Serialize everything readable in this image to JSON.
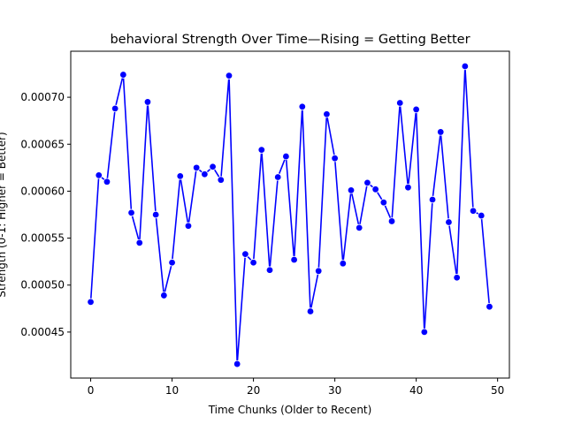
{
  "chart_data": {
    "type": "line",
    "title": "behavioral Strength Over Time—Rising = Getting Better",
    "xlabel": "Time Chunks (Older to Recent)",
    "ylabel": "Strength (0-1: Higher = Better)",
    "xlim": [
      -2.45,
      51.45
    ],
    "ylim": [
      0.000401,
      0.000749
    ],
    "xticks": [
      0,
      10,
      20,
      30,
      40,
      50
    ],
    "xtick_labels": [
      "0",
      "10",
      "20",
      "30",
      "40",
      "50"
    ],
    "yticks": [
      0.00045,
      0.0005,
      0.00055,
      0.0006,
      0.00065,
      0.0007
    ],
    "ytick_labels": [
      "0.00045",
      "0.00050",
      "0.00055",
      "0.00060",
      "0.00065",
      "0.00070"
    ],
    "grid": false,
    "legend": false,
    "series": [
      {
        "color": "#0000ff",
        "marker": "circle",
        "x": [
          0,
          1,
          2,
          3,
          4,
          5,
          6,
          7,
          8,
          9,
          10,
          11,
          12,
          13,
          14,
          15,
          16,
          17,
          18,
          19,
          20,
          21,
          22,
          23,
          24,
          25,
          26,
          27,
          28,
          29,
          30,
          31,
          32,
          33,
          34,
          35,
          36,
          37,
          38,
          39,
          40,
          41,
          42,
          43,
          44,
          45,
          46,
          47,
          48,
          49
        ],
        "values": [
          0.000482,
          0.000617,
          0.00061,
          0.000688,
          0.000724,
          0.000577,
          0.000545,
          0.000695,
          0.000575,
          0.000489,
          0.000524,
          0.000616,
          0.000563,
          0.000625,
          0.000618,
          0.000626,
          0.000612,
          0.000723,
          0.000416,
          0.000533,
          0.000524,
          0.000644,
          0.000516,
          0.000615,
          0.000637,
          0.000527,
          0.00069,
          0.000472,
          0.000515,
          0.000682,
          0.000635,
          0.000523,
          0.000601,
          0.000561,
          0.000609,
          0.000602,
          0.000588,
          0.000568,
          0.000694,
          0.000604,
          0.000687,
          0.00045,
          0.000591,
          0.000663,
          0.000567,
          0.000508,
          0.000733,
          0.000579,
          0.000574,
          0.000477
        ]
      }
    ]
  }
}
